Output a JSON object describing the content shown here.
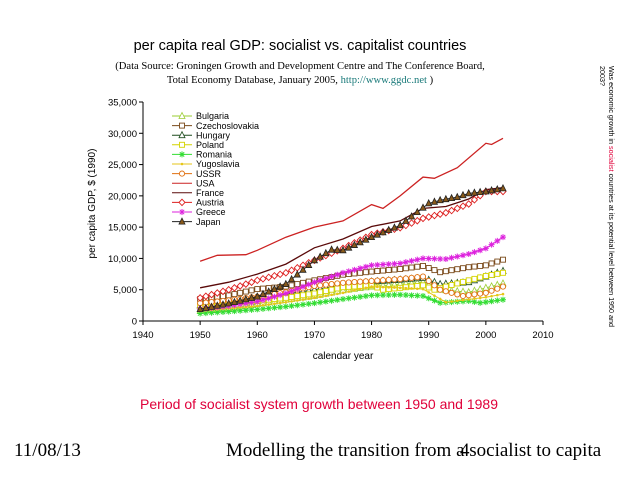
{
  "chart_data": {
    "type": "line",
    "title": "per capita real GDP: socialist vs. capitalist countries",
    "subtitle_prefix": "(Data Source: Groningen Growth and Development Centre and The Conference Board,",
    "subtitle_line2_prefix": "Total Economy Database, January 2005, ",
    "subtitle_link": "http://www.ggdc.net",
    "subtitle_line2_suffix": " )",
    "xlabel": "calendar year",
    "ylabel": "per capita GDP, $ (1990)",
    "xlim": [
      1940,
      2010
    ],
    "ylim": [
      0,
      35000
    ],
    "x_ticks": [
      "1940",
      "1950",
      "1960",
      "1970",
      "1980",
      "1990",
      "2000",
      "2010"
    ],
    "y_ticks": [
      "0",
      "5,000",
      "10,000",
      "15,000",
      "20,000",
      "25,000",
      "30,000",
      "35,000"
    ],
    "legend_position": "top-left",
    "series": [
      {
        "name": "Bulgaria",
        "color": "#9acd32",
        "marker": "triangle-open",
        "points": [
          [
            1950,
            1650
          ],
          [
            1955,
            2050
          ],
          [
            1960,
            2700
          ],
          [
            1965,
            3400
          ],
          [
            1970,
            4000
          ],
          [
            1975,
            4900
          ],
          [
            1980,
            5500
          ],
          [
            1985,
            5900
          ],
          [
            1989,
            6200
          ],
          [
            1992,
            5000
          ],
          [
            1997,
            4600
          ],
          [
            2000,
            5300
          ],
          [
            2003,
            6000
          ]
        ]
      },
      {
        "name": "Czechoslovakia",
        "color": "#7a4a1a",
        "marker": "square-open",
        "points": [
          [
            1950,
            3500
          ],
          [
            1955,
            4100
          ],
          [
            1960,
            5100
          ],
          [
            1965,
            5500
          ],
          [
            1970,
            6500
          ],
          [
            1975,
            7400
          ],
          [
            1980,
            7900
          ],
          [
            1985,
            8300
          ],
          [
            1989,
            8800
          ],
          [
            1992,
            7800
          ],
          [
            1997,
            8600
          ],
          [
            2000,
            8900
          ],
          [
            2003,
            9800
          ]
        ]
      },
      {
        "name": "Hungary",
        "color": "#1e4d1e",
        "marker": "triangle-open",
        "points": [
          [
            1950,
            2500
          ],
          [
            1955,
            3000
          ],
          [
            1960,
            3600
          ],
          [
            1965,
            4300
          ],
          [
            1970,
            5000
          ],
          [
            1975,
            5800
          ],
          [
            1980,
            6300
          ],
          [
            1985,
            6600
          ],
          [
            1989,
            6900
          ],
          [
            1992,
            5900
          ],
          [
            1997,
            6200
          ],
          [
            2000,
            7100
          ],
          [
            2003,
            8000
          ]
        ]
      },
      {
        "name": "Poland",
        "color": "#d4d400",
        "marker": "square-open",
        "points": [
          [
            1950,
            2450
          ],
          [
            1955,
            2900
          ],
          [
            1960,
            3200
          ],
          [
            1965,
            3700
          ],
          [
            1970,
            4400
          ],
          [
            1975,
            5400
          ],
          [
            1980,
            5700
          ],
          [
            1982,
            5000
          ],
          [
            1985,
            5300
          ],
          [
            1989,
            5700
          ],
          [
            1991,
            5000
          ],
          [
            1997,
            6500
          ],
          [
            2000,
            7200
          ],
          [
            2003,
            7700
          ]
        ]
      },
      {
        "name": "Romania",
        "color": "#33dd33",
        "marker": "star",
        "points": [
          [
            1950,
            1200
          ],
          [
            1955,
            1500
          ],
          [
            1960,
            1850
          ],
          [
            1965,
            2300
          ],
          [
            1970,
            2850
          ],
          [
            1975,
            3500
          ],
          [
            1980,
            4100
          ],
          [
            1985,
            4200
          ],
          [
            1989,
            4000
          ],
          [
            1992,
            2900
          ],
          [
            1997,
            3200
          ],
          [
            1999,
            2900
          ],
          [
            2003,
            3400
          ]
        ]
      },
      {
        "name": "Yugoslavia",
        "color": "#e6c619",
        "marker": "dot",
        "points": [
          [
            1950,
            1600
          ],
          [
            1955,
            2000
          ],
          [
            1960,
            2400
          ],
          [
            1965,
            3000
          ],
          [
            1970,
            3700
          ],
          [
            1975,
            4500
          ],
          [
            1980,
            5500
          ],
          [
            1985,
            5300
          ],
          [
            1989,
            5100
          ],
          [
            1993,
            3000
          ],
          [
            2000,
            3800
          ],
          [
            2003,
            4300
          ]
        ]
      },
      {
        "name": "USSR",
        "color": "#e07010",
        "marker": "circle-open",
        "points": [
          [
            1950,
            2850
          ],
          [
            1955,
            3300
          ],
          [
            1960,
            3900
          ],
          [
            1965,
            4600
          ],
          [
            1970,
            5600
          ],
          [
            1975,
            6100
          ],
          [
            1980,
            6400
          ],
          [
            1985,
            6700
          ],
          [
            1989,
            7100
          ],
          [
            1992,
            5000
          ],
          [
            1996,
            4000
          ],
          [
            2000,
            4500
          ],
          [
            2003,
            5500
          ]
        ]
      },
      {
        "name": "USA",
        "color": "#cc2222",
        "marker": "line",
        "points": [
          [
            1950,
            9550
          ],
          [
            1953,
            10500
          ],
          [
            1958,
            10600
          ],
          [
            1960,
            11300
          ],
          [
            1965,
            13400
          ],
          [
            1970,
            15000
          ],
          [
            1975,
            16000
          ],
          [
            1980,
            18600
          ],
          [
            1982,
            18000
          ],
          [
            1985,
            20000
          ],
          [
            1989,
            23000
          ],
          [
            1991,
            22800
          ],
          [
            1995,
            24500
          ],
          [
            2000,
            28400
          ],
          [
            2001,
            28200
          ],
          [
            2003,
            29200
          ]
        ]
      },
      {
        "name": "France",
        "color": "#5a0a0a",
        "marker": "line",
        "points": [
          [
            1950,
            5300
          ],
          [
            1955,
            6200
          ],
          [
            1960,
            7500
          ],
          [
            1965,
            9100
          ],
          [
            1970,
            11700
          ],
          [
            1975,
            13100
          ],
          [
            1980,
            15100
          ],
          [
            1985,
            16000
          ],
          [
            1989,
            18000
          ],
          [
            1993,
            18300
          ],
          [
            1997,
            19500
          ],
          [
            2000,
            21000
          ],
          [
            2003,
            21300
          ]
        ]
      },
      {
        "name": "Austria",
        "color": "#dd1f1f",
        "marker": "diamond-open",
        "points": [
          [
            1950,
            3700
          ],
          [
            1955,
            5000
          ],
          [
            1960,
            6500
          ],
          [
            1965,
            7700
          ],
          [
            1970,
            9700
          ],
          [
            1975,
            11600
          ],
          [
            1980,
            13800
          ],
          [
            1985,
            14900
          ],
          [
            1989,
            16400
          ],
          [
            1993,
            17300
          ],
          [
            1997,
            18700
          ],
          [
            2000,
            20700
          ],
          [
            2003,
            20700
          ]
        ]
      },
      {
        "name": "Greece",
        "color": "#dd22dd",
        "marker": "star",
        "points": [
          [
            1950,
            1900
          ],
          [
            1955,
            2400
          ],
          [
            1960,
            3100
          ],
          [
            1965,
            4400
          ],
          [
            1970,
            6200
          ],
          [
            1975,
            7700
          ],
          [
            1980,
            8900
          ],
          [
            1985,
            9200
          ],
          [
            1989,
            10000
          ],
          [
            1993,
            9900
          ],
          [
            1997,
            10700
          ],
          [
            2000,
            11600
          ],
          [
            2003,
            13400
          ]
        ]
      },
      {
        "name": "Japan",
        "color": "#222222",
        "marker": "triangle-filled",
        "fill": "#8a5a1a",
        "points": [
          [
            1950,
            1900
          ],
          [
            1955,
            2800
          ],
          [
            1960,
            3900
          ],
          [
            1965,
            5900
          ],
          [
            1970,
            9700
          ],
          [
            1973,
            11400
          ],
          [
            1975,
            11300
          ],
          [
            1980,
            13400
          ],
          [
            1985,
            15300
          ],
          [
            1990,
            18800
          ],
          [
            1992,
            19300
          ],
          [
            1995,
            19800
          ],
          [
            1997,
            20400
          ],
          [
            2000,
            20700
          ],
          [
            2003,
            21200
          ]
        ]
      }
    ]
  },
  "caption": "Period of socialist system growth between 1950 and 1989",
  "side_note": {
    "part1": "Was economic growth in ",
    "highlight": "socialist",
    "part2": " countries at its potential level  between 1950 and",
    "line2": "2003?"
  },
  "footer": {
    "date": "11/08/13",
    "title": "Modelling the transition from a socialist to capita",
    "page": "4"
  },
  "colors": {
    "axis": "#000000",
    "caption": "#e0003a",
    "link": "#1a7a7a"
  }
}
